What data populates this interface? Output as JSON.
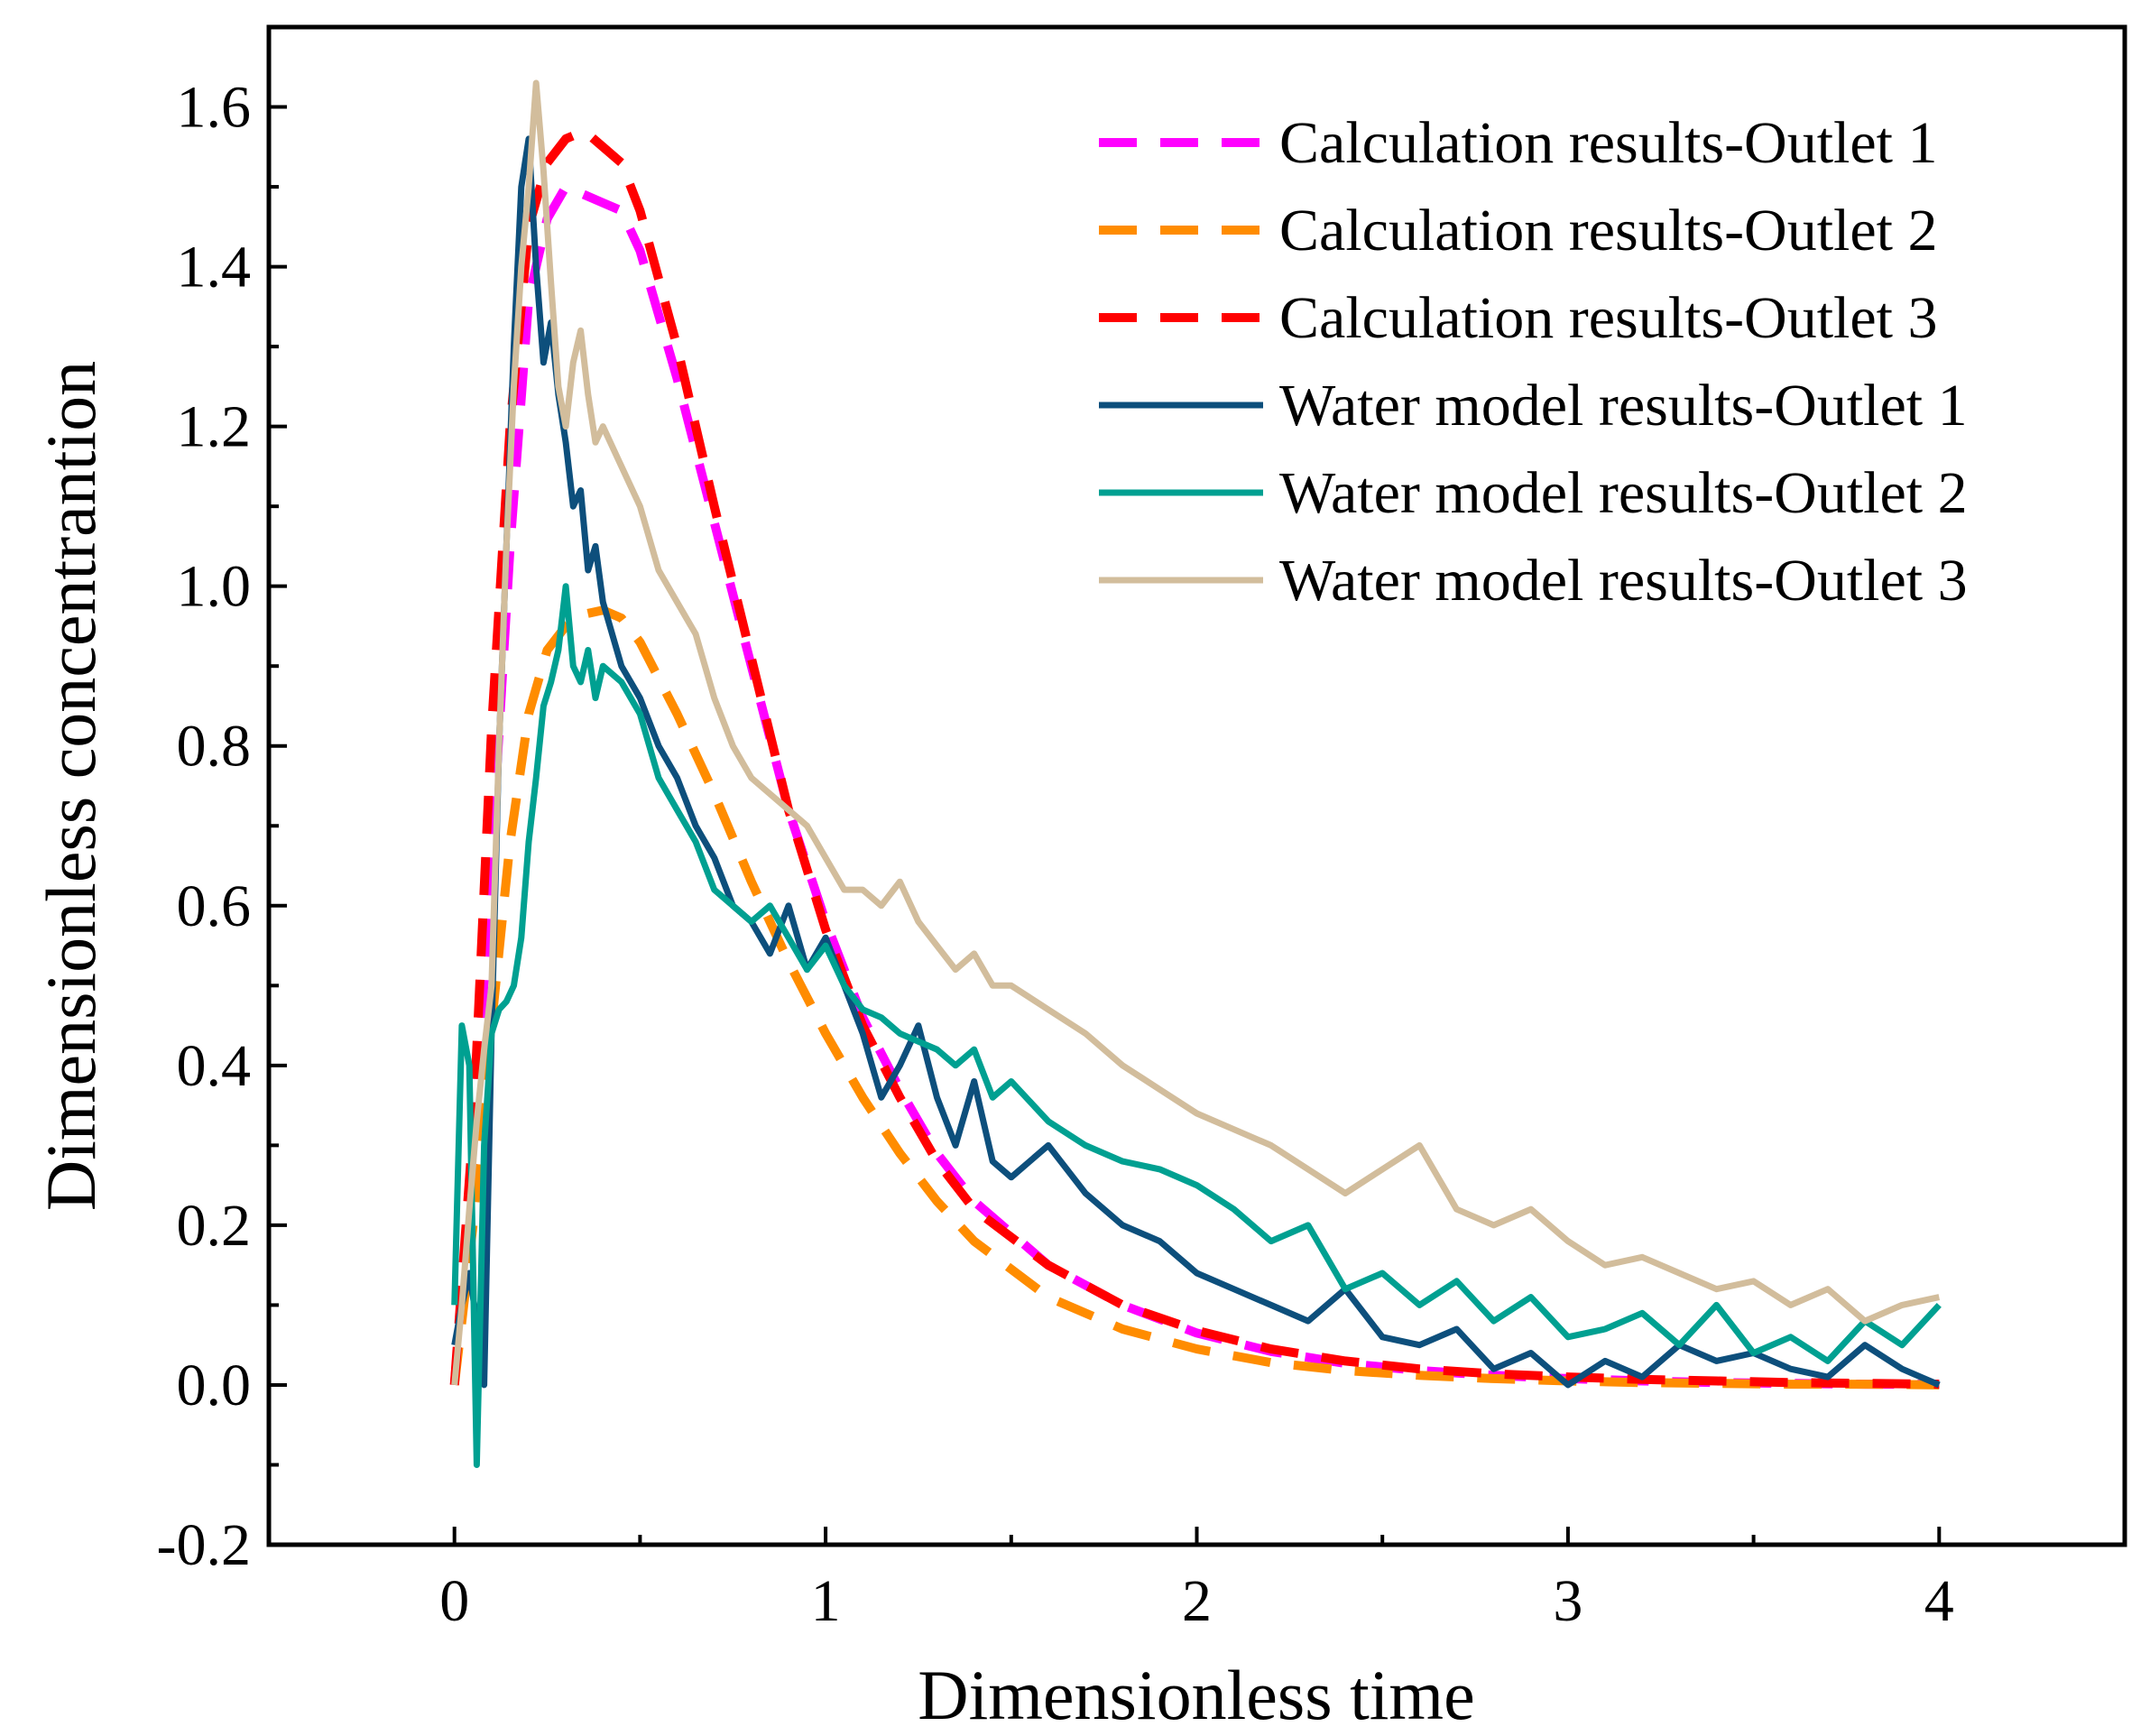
{
  "chart_data": {
    "type": "line",
    "title": "",
    "xlabel": "Dimensionless time",
    "ylabel": "Dimensionless concentrantion",
    "xlim": [
      -0.5,
      4.5
    ],
    "ylim": [
      -0.2,
      1.7
    ],
    "xticks": [
      0,
      1,
      2,
      3,
      4
    ],
    "xtick_labels": [
      "0",
      "1",
      "2",
      "3",
      "4"
    ],
    "yticks": [
      -0.2,
      0.0,
      0.2,
      0.4,
      0.6,
      0.8,
      1.0,
      1.2,
      1.4,
      1.6
    ],
    "ytick_labels": [
      "-0.2",
      "0.0",
      "0.2",
      "0.4",
      "0.6",
      "0.8",
      "1.0",
      "1.2",
      "1.4",
      "1.6"
    ],
    "grid": false,
    "legend_position": "top-right",
    "series": [
      {
        "name": "Calculation results-Outlet 1",
        "style": "dashed",
        "color": "#ff00ff",
        "x": [
          0.0,
          0.05,
          0.1,
          0.15,
          0.2,
          0.25,
          0.3,
          0.35,
          0.4,
          0.45,
          0.5,
          0.6,
          0.7,
          0.8,
          0.9,
          1.0,
          1.1,
          1.2,
          1.3,
          1.4,
          1.6,
          1.8,
          2.0,
          2.2,
          2.4,
          2.6,
          2.8,
          3.0,
          3.2,
          3.4,
          3.6,
          3.8,
          4.0
        ],
        "values": [
          0.0,
          0.28,
          0.66,
          1.05,
          1.36,
          1.46,
          1.5,
          1.49,
          1.48,
          1.47,
          1.42,
          1.26,
          1.08,
          0.9,
          0.72,
          0.58,
          0.46,
          0.37,
          0.29,
          0.23,
          0.15,
          0.1,
          0.065,
          0.042,
          0.027,
          0.018,
          0.012,
          0.008,
          0.005,
          0.003,
          0.002,
          0.001,
          0.001
        ]
      },
      {
        "name": "Calculation results-Outlet 2",
        "style": "dashed",
        "color": "#ff8c00",
        "x": [
          0.0,
          0.05,
          0.1,
          0.15,
          0.2,
          0.25,
          0.3,
          0.35,
          0.4,
          0.45,
          0.5,
          0.6,
          0.7,
          0.8,
          0.9,
          1.0,
          1.1,
          1.2,
          1.3,
          1.4,
          1.6,
          1.8,
          2.0,
          2.2,
          2.4,
          2.6,
          2.8,
          3.0,
          3.2,
          3.4,
          3.6,
          3.8,
          4.0
        ],
        "values": [
          0.0,
          0.2,
          0.45,
          0.68,
          0.84,
          0.92,
          0.95,
          0.965,
          0.97,
          0.96,
          0.93,
          0.84,
          0.74,
          0.63,
          0.53,
          0.44,
          0.36,
          0.29,
          0.23,
          0.18,
          0.11,
          0.07,
          0.045,
          0.028,
          0.018,
          0.012,
          0.008,
          0.005,
          0.003,
          0.002,
          0.001,
          0.001,
          0.0
        ]
      },
      {
        "name": "Calculation results-Outlet 3",
        "style": "dashed",
        "color": "#ff0000",
        "x": [
          0.0,
          0.05,
          0.1,
          0.15,
          0.2,
          0.25,
          0.3,
          0.35,
          0.4,
          0.45,
          0.5,
          0.6,
          0.7,
          0.8,
          0.9,
          1.0,
          1.1,
          1.2,
          1.3,
          1.4,
          1.6,
          1.8,
          2.0,
          2.2,
          2.4,
          2.6,
          2.8,
          3.0,
          3.2,
          3.4,
          3.6,
          3.8,
          4.0
        ],
        "values": [
          0.0,
          0.32,
          0.82,
          1.2,
          1.45,
          1.53,
          1.56,
          1.57,
          1.55,
          1.53,
          1.47,
          1.3,
          1.1,
          0.91,
          0.72,
          0.57,
          0.45,
          0.36,
          0.28,
          0.22,
          0.15,
          0.1,
          0.068,
          0.045,
          0.03,
          0.02,
          0.014,
          0.01,
          0.007,
          0.005,
          0.003,
          0.002,
          0.001
        ]
      },
      {
        "name": "Water model results-Outlet 1",
        "style": "solid",
        "color": "#0d4f7c",
        "x": [
          0.0,
          0.02,
          0.04,
          0.06,
          0.08,
          0.1,
          0.12,
          0.14,
          0.16,
          0.18,
          0.2,
          0.22,
          0.24,
          0.26,
          0.28,
          0.3,
          0.32,
          0.34,
          0.36,
          0.38,
          0.4,
          0.45,
          0.5,
          0.55,
          0.6,
          0.65,
          0.7,
          0.75,
          0.8,
          0.85,
          0.9,
          0.95,
          1.0,
          1.05,
          1.1,
          1.15,
          1.2,
          1.25,
          1.3,
          1.35,
          1.4,
          1.45,
          1.5,
          1.6,
          1.7,
          1.8,
          1.9,
          2.0,
          2.1,
          2.2,
          2.3,
          2.4,
          2.5,
          2.6,
          2.7,
          2.8,
          2.9,
          3.0,
          3.1,
          3.2,
          3.3,
          3.4,
          3.5,
          3.6,
          3.7,
          3.8,
          3.9,
          4.0
        ],
        "values": [
          0.05,
          0.1,
          0.14,
          0.08,
          0.0,
          0.44,
          0.8,
          1.05,
          1.3,
          1.5,
          1.56,
          1.4,
          1.28,
          1.33,
          1.24,
          1.18,
          1.1,
          1.12,
          1.02,
          1.05,
          0.98,
          0.9,
          0.86,
          0.8,
          0.76,
          0.7,
          0.66,
          0.6,
          0.58,
          0.54,
          0.6,
          0.52,
          0.56,
          0.5,
          0.44,
          0.36,
          0.4,
          0.45,
          0.36,
          0.3,
          0.38,
          0.28,
          0.26,
          0.3,
          0.24,
          0.2,
          0.18,
          0.14,
          0.12,
          0.1,
          0.08,
          0.12,
          0.06,
          0.05,
          0.07,
          0.02,
          0.04,
          0.0,
          0.03,
          0.01,
          0.05,
          0.03,
          0.04,
          0.02,
          0.01,
          0.05,
          0.02,
          0.0
        ]
      },
      {
        "name": "Water model results-Outlet 2",
        "style": "solid",
        "color": "#00a091",
        "x": [
          0.0,
          0.02,
          0.04,
          0.06,
          0.08,
          0.1,
          0.12,
          0.14,
          0.16,
          0.18,
          0.2,
          0.22,
          0.24,
          0.26,
          0.28,
          0.3,
          0.32,
          0.34,
          0.36,
          0.38,
          0.4,
          0.45,
          0.5,
          0.55,
          0.6,
          0.65,
          0.7,
          0.75,
          0.8,
          0.85,
          0.9,
          0.95,
          1.0,
          1.05,
          1.1,
          1.15,
          1.2,
          1.25,
          1.3,
          1.35,
          1.4,
          1.45,
          1.5,
          1.6,
          1.7,
          1.8,
          1.9,
          2.0,
          2.1,
          2.2,
          2.3,
          2.4,
          2.5,
          2.6,
          2.7,
          2.8,
          2.9,
          3.0,
          3.1,
          3.2,
          3.3,
          3.4,
          3.5,
          3.6,
          3.7,
          3.8,
          3.9,
          4.0
        ],
        "values": [
          0.1,
          0.45,
          0.4,
          -0.1,
          0.3,
          0.44,
          0.47,
          0.48,
          0.5,
          0.56,
          0.68,
          0.76,
          0.85,
          0.88,
          0.92,
          1.0,
          0.9,
          0.88,
          0.92,
          0.86,
          0.9,
          0.88,
          0.84,
          0.76,
          0.72,
          0.68,
          0.62,
          0.6,
          0.58,
          0.6,
          0.56,
          0.52,
          0.55,
          0.5,
          0.47,
          0.46,
          0.44,
          0.43,
          0.42,
          0.4,
          0.42,
          0.36,
          0.38,
          0.33,
          0.3,
          0.28,
          0.27,
          0.25,
          0.22,
          0.18,
          0.2,
          0.12,
          0.14,
          0.1,
          0.13,
          0.08,
          0.11,
          0.06,
          0.07,
          0.09,
          0.05,
          0.1,
          0.04,
          0.06,
          0.03,
          0.08,
          0.05,
          0.1
        ]
      },
      {
        "name": "Water model results-Outlet 3",
        "style": "solid",
        "color": "#d2bd9c",
        "x": [
          0.0,
          0.02,
          0.04,
          0.06,
          0.08,
          0.1,
          0.12,
          0.14,
          0.16,
          0.18,
          0.2,
          0.22,
          0.24,
          0.26,
          0.28,
          0.3,
          0.32,
          0.34,
          0.36,
          0.38,
          0.4,
          0.45,
          0.5,
          0.55,
          0.6,
          0.65,
          0.7,
          0.75,
          0.8,
          0.85,
          0.9,
          0.95,
          1.0,
          1.05,
          1.1,
          1.15,
          1.2,
          1.25,
          1.3,
          1.35,
          1.4,
          1.45,
          1.5,
          1.6,
          1.7,
          1.8,
          1.9,
          2.0,
          2.1,
          2.2,
          2.3,
          2.4,
          2.5,
          2.6,
          2.7,
          2.8,
          2.9,
          3.0,
          3.1,
          3.2,
          3.3,
          3.4,
          3.5,
          3.6,
          3.7,
          3.8,
          3.9,
          4.0
        ],
        "values": [
          0.0,
          0.1,
          0.22,
          0.33,
          0.42,
          0.5,
          0.8,
          1.05,
          1.25,
          1.4,
          1.5,
          1.63,
          1.52,
          1.38,
          1.25,
          1.2,
          1.28,
          1.32,
          1.24,
          1.18,
          1.2,
          1.15,
          1.1,
          1.02,
          0.98,
          0.94,
          0.86,
          0.8,
          0.76,
          0.74,
          0.72,
          0.7,
          0.66,
          0.62,
          0.62,
          0.6,
          0.63,
          0.58,
          0.55,
          0.52,
          0.54,
          0.5,
          0.5,
          0.47,
          0.44,
          0.4,
          0.37,
          0.34,
          0.32,
          0.3,
          0.27,
          0.24,
          0.27,
          0.3,
          0.22,
          0.2,
          0.22,
          0.18,
          0.15,
          0.16,
          0.14,
          0.12,
          0.13,
          0.1,
          0.12,
          0.08,
          0.1,
          0.11
        ]
      }
    ]
  }
}
